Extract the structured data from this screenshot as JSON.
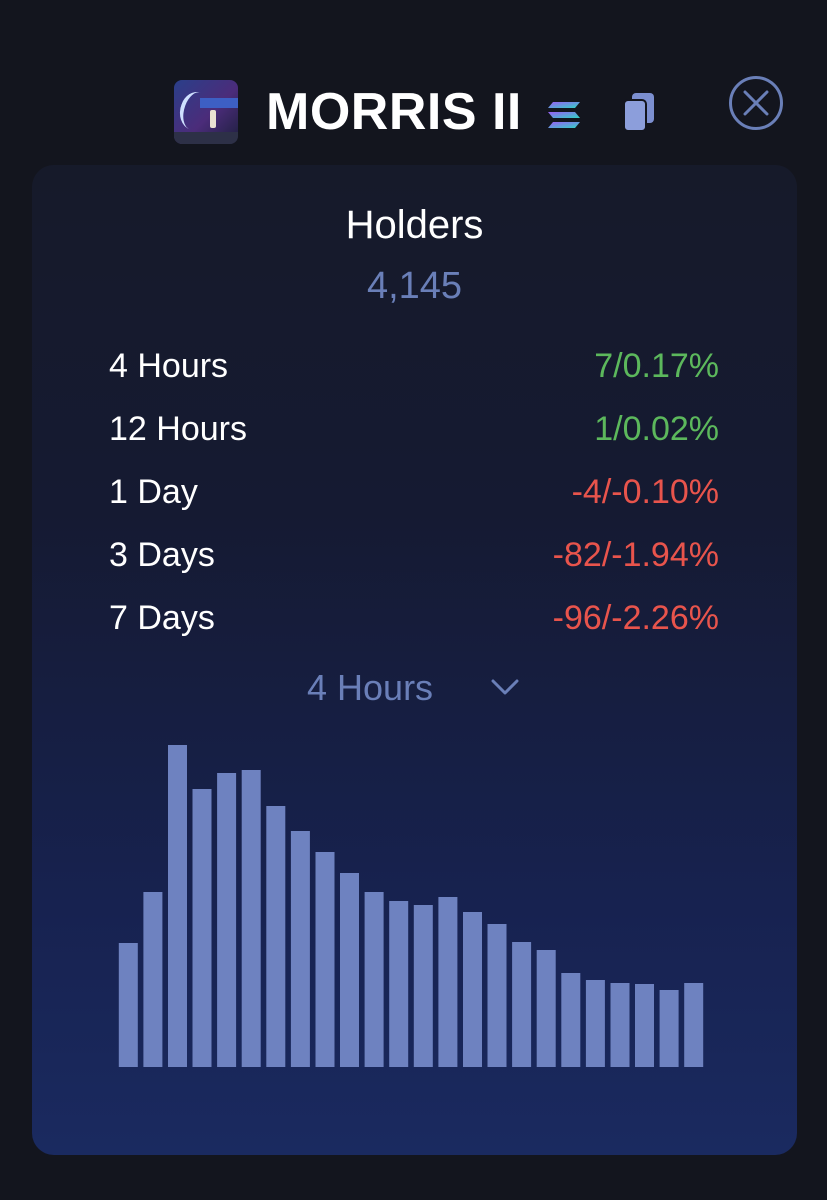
{
  "header": {
    "token_name": "MORRIS II",
    "chain_icon": "solana-icon",
    "copy_icon": "copy-icon",
    "close_icon": "close-icon"
  },
  "holders": {
    "title": "Holders",
    "count": "4,145"
  },
  "stats": [
    {
      "label": "4 Hours",
      "value": "7/0.17%",
      "trend": "up"
    },
    {
      "label": "12 Hours",
      "value": "1/0.02%",
      "trend": "up"
    },
    {
      "label": "1 Day",
      "value": "-4/-0.10%",
      "trend": "down"
    },
    {
      "label": "3 Days",
      "value": "-82/-1.94%",
      "trend": "down"
    },
    {
      "label": "7 Days",
      "value": "-96/-2.26%",
      "trend": "down"
    }
  ],
  "period_select": {
    "selected": "4 Hours"
  },
  "colors": {
    "accent": "#6a7fb8",
    "bar": "#6e82c0",
    "positive": "#5cb85c",
    "negative": "#e8544c",
    "background": "#13151e"
  },
  "chart_data": {
    "type": "bar",
    "values": [
      124,
      175,
      322,
      278,
      294,
      297,
      261,
      236,
      215,
      194,
      175,
      166,
      162,
      170,
      155,
      143,
      125,
      117,
      94,
      87,
      84,
      83,
      77,
      84
    ],
    "ylim": [
      0,
      332
    ]
  }
}
